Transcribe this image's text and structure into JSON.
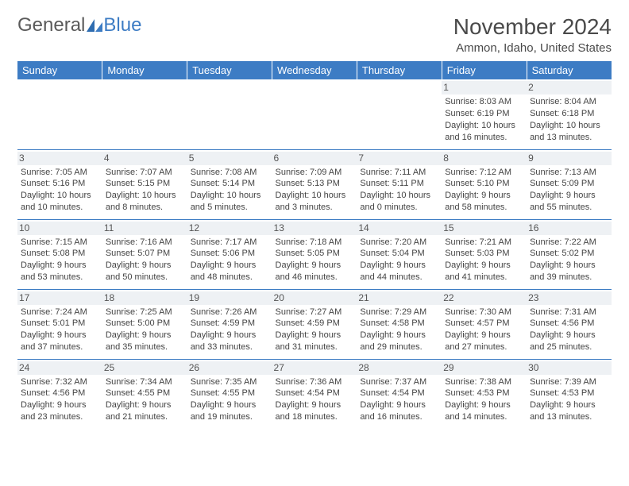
{
  "logo": {
    "text_general": "General",
    "text_blue": "Blue"
  },
  "header": {
    "month_year": "November 2024",
    "location": "Ammon, Idaho, United States"
  },
  "colors": {
    "header_bg": "#3d7cc4",
    "header_text": "#ffffff",
    "day_label_bg": "#eef1f4",
    "row_border": "#3d7cc4",
    "body_text": "#444444"
  },
  "weekdays": [
    "Sunday",
    "Monday",
    "Tuesday",
    "Wednesday",
    "Thursday",
    "Friday",
    "Saturday"
  ],
  "weeks": [
    [
      null,
      null,
      null,
      null,
      null,
      {
        "n": "1",
        "sunrise": "8:03 AM",
        "sunset": "6:19 PM",
        "daylight": "10 hours and 16 minutes."
      },
      {
        "n": "2",
        "sunrise": "8:04 AM",
        "sunset": "6:18 PM",
        "daylight": "10 hours and 13 minutes."
      }
    ],
    [
      {
        "n": "3",
        "sunrise": "7:05 AM",
        "sunset": "5:16 PM",
        "daylight": "10 hours and 10 minutes."
      },
      {
        "n": "4",
        "sunrise": "7:07 AM",
        "sunset": "5:15 PM",
        "daylight": "10 hours and 8 minutes."
      },
      {
        "n": "5",
        "sunrise": "7:08 AM",
        "sunset": "5:14 PM",
        "daylight": "10 hours and 5 minutes."
      },
      {
        "n": "6",
        "sunrise": "7:09 AM",
        "sunset": "5:13 PM",
        "daylight": "10 hours and 3 minutes."
      },
      {
        "n": "7",
        "sunrise": "7:11 AM",
        "sunset": "5:11 PM",
        "daylight": "10 hours and 0 minutes."
      },
      {
        "n": "8",
        "sunrise": "7:12 AM",
        "sunset": "5:10 PM",
        "daylight": "9 hours and 58 minutes."
      },
      {
        "n": "9",
        "sunrise": "7:13 AM",
        "sunset": "5:09 PM",
        "daylight": "9 hours and 55 minutes."
      }
    ],
    [
      {
        "n": "10",
        "sunrise": "7:15 AM",
        "sunset": "5:08 PM",
        "daylight": "9 hours and 53 minutes."
      },
      {
        "n": "11",
        "sunrise": "7:16 AM",
        "sunset": "5:07 PM",
        "daylight": "9 hours and 50 minutes."
      },
      {
        "n": "12",
        "sunrise": "7:17 AM",
        "sunset": "5:06 PM",
        "daylight": "9 hours and 48 minutes."
      },
      {
        "n": "13",
        "sunrise": "7:18 AM",
        "sunset": "5:05 PM",
        "daylight": "9 hours and 46 minutes."
      },
      {
        "n": "14",
        "sunrise": "7:20 AM",
        "sunset": "5:04 PM",
        "daylight": "9 hours and 44 minutes."
      },
      {
        "n": "15",
        "sunrise": "7:21 AM",
        "sunset": "5:03 PM",
        "daylight": "9 hours and 41 minutes."
      },
      {
        "n": "16",
        "sunrise": "7:22 AM",
        "sunset": "5:02 PM",
        "daylight": "9 hours and 39 minutes."
      }
    ],
    [
      {
        "n": "17",
        "sunrise": "7:24 AM",
        "sunset": "5:01 PM",
        "daylight": "9 hours and 37 minutes."
      },
      {
        "n": "18",
        "sunrise": "7:25 AM",
        "sunset": "5:00 PM",
        "daylight": "9 hours and 35 minutes."
      },
      {
        "n": "19",
        "sunrise": "7:26 AM",
        "sunset": "4:59 PM",
        "daylight": "9 hours and 33 minutes."
      },
      {
        "n": "20",
        "sunrise": "7:27 AM",
        "sunset": "4:59 PM",
        "daylight": "9 hours and 31 minutes."
      },
      {
        "n": "21",
        "sunrise": "7:29 AM",
        "sunset": "4:58 PM",
        "daylight": "9 hours and 29 minutes."
      },
      {
        "n": "22",
        "sunrise": "7:30 AM",
        "sunset": "4:57 PM",
        "daylight": "9 hours and 27 minutes."
      },
      {
        "n": "23",
        "sunrise": "7:31 AM",
        "sunset": "4:56 PM",
        "daylight": "9 hours and 25 minutes."
      }
    ],
    [
      {
        "n": "24",
        "sunrise": "7:32 AM",
        "sunset": "4:56 PM",
        "daylight": "9 hours and 23 minutes."
      },
      {
        "n": "25",
        "sunrise": "7:34 AM",
        "sunset": "4:55 PM",
        "daylight": "9 hours and 21 minutes."
      },
      {
        "n": "26",
        "sunrise": "7:35 AM",
        "sunset": "4:55 PM",
        "daylight": "9 hours and 19 minutes."
      },
      {
        "n": "27",
        "sunrise": "7:36 AM",
        "sunset": "4:54 PM",
        "daylight": "9 hours and 18 minutes."
      },
      {
        "n": "28",
        "sunrise": "7:37 AM",
        "sunset": "4:54 PM",
        "daylight": "9 hours and 16 minutes."
      },
      {
        "n": "29",
        "sunrise": "7:38 AM",
        "sunset": "4:53 PM",
        "daylight": "9 hours and 14 minutes."
      },
      {
        "n": "30",
        "sunrise": "7:39 AM",
        "sunset": "4:53 PM",
        "daylight": "9 hours and 13 minutes."
      }
    ]
  ],
  "labels": {
    "sunrise": "Sunrise: ",
    "sunset": "Sunset: ",
    "daylight": "Daylight: "
  }
}
